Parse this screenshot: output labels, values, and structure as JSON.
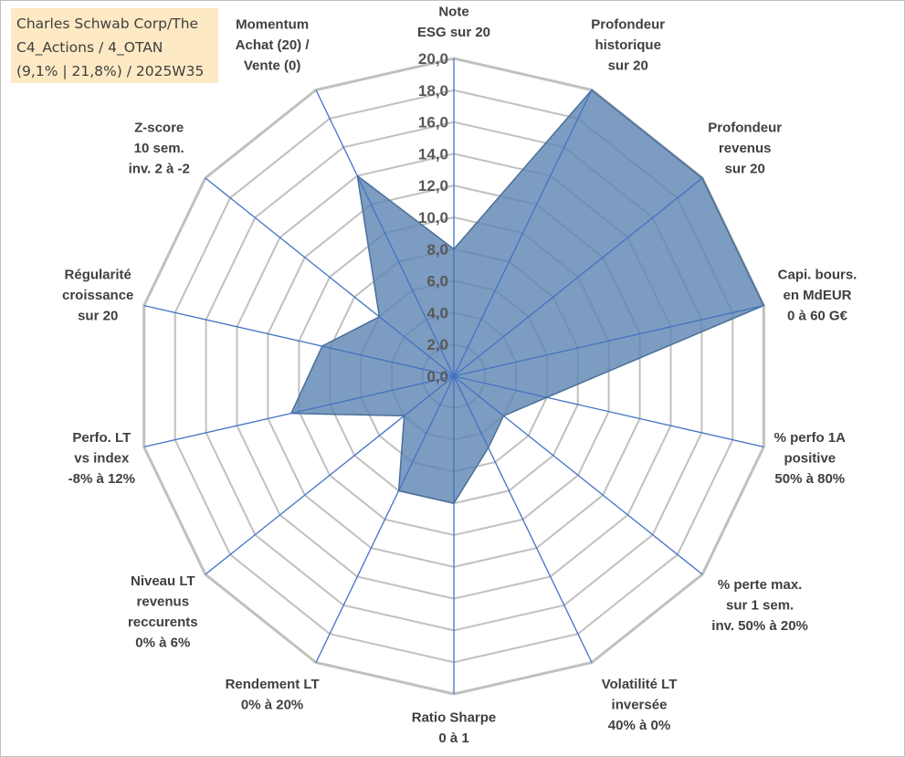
{
  "header": {
    "line1": "Charles Schwab Corp/The",
    "line2": "C4_Actions / 4_OTAN",
    "line3": "(9,1% | 21,8%) / 2025W35"
  },
  "chart_data": {
    "type": "radar",
    "title": "Charles Schwab Corp/The C4_Actions / 4_OTAN (9,1% | 21,8%) / 2025W35",
    "range": [
      0,
      20
    ],
    "step": 2,
    "tick_labels": [
      "0,0",
      "2,0",
      "4,0",
      "6,0",
      "8,0",
      "10,0",
      "12,0",
      "14,0",
      "16,0",
      "18,0",
      "20,0"
    ],
    "grid": true,
    "colors": {
      "fill": "#5b84b1",
      "fill_stroke": "#4a6f99",
      "spokes": "#4472c4",
      "grid": "#c0c0c0"
    },
    "axes": [
      {
        "label": [
          "Note",
          "ESG sur 20"
        ],
        "value": 8.0
      },
      {
        "label": [
          "Profondeur",
          "historique",
          "sur 20"
        ],
        "value": 20.0
      },
      {
        "label": [
          "Profondeur",
          "revenus",
          "sur 20"
        ],
        "value": 20.0
      },
      {
        "label": [
          "Capi. bours.",
          "en MdEUR",
          "0 à 60 G€"
        ],
        "value": 20.0
      },
      {
        "label": [
          "% perfo 1A",
          "positive",
          "50% à 80%"
        ],
        "value": 6.0
      },
      {
        "label": [
          "% perte max.",
          "sur 1 sem.",
          "inv. 50% à 20%"
        ],
        "value": 4.0
      },
      {
        "label": [
          "Volatilité LT",
          "inversée",
          "40% à 0%"
        ],
        "value": 5.0
      },
      {
        "label": [
          "Ratio Sharpe",
          "0 à 1"
        ],
        "value": 8.0
      },
      {
        "label": [
          "Rendement LT",
          "0% à 20%"
        ],
        "value": 8.0
      },
      {
        "label": [
          "Niveau LT",
          "revenus",
          "reccurents",
          "0% à 6%"
        ],
        "value": 4.0
      },
      {
        "label": [
          "Perfo. LT",
          "vs index",
          "-8% à 12%"
        ],
        "value": 10.5
      },
      {
        "label": [
          "Régularité",
          "croissance",
          "sur 20"
        ],
        "value": 8.5
      },
      {
        "label": [
          "Z-score",
          "10 sem.",
          "inv. 2 à -2"
        ],
        "value": 6.0
      },
      {
        "label": [
          "Momentum",
          "Achat (20) /",
          "Vente (0)"
        ],
        "value": 14.0
      }
    ]
  }
}
